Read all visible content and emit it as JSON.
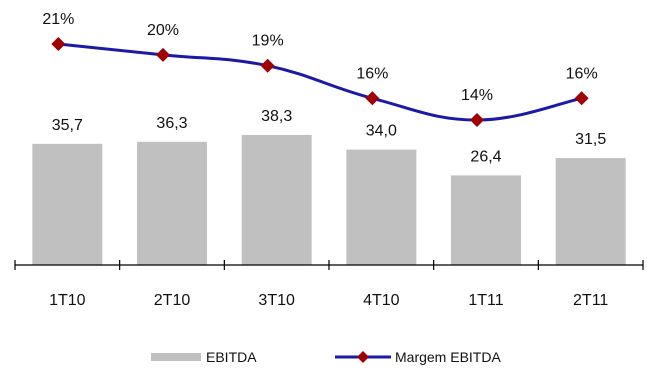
{
  "chart_data": {
    "type": "bar+line",
    "categories": [
      "1T10",
      "2T10",
      "3T10",
      "4T10",
      "1T11",
      "2T11"
    ],
    "series": [
      {
        "name": "EBITDA",
        "type": "bar",
        "values": [
          35.7,
          36.3,
          38.3,
          34.0,
          26.4,
          31.5
        ],
        "labels": [
          "35,7",
          "36,3",
          "38,3",
          "34,0",
          "26,4",
          "31,5"
        ],
        "color": "#c0c0c0"
      },
      {
        "name": "Margem EBITDA",
        "type": "line",
        "values": [
          21,
          20,
          19,
          16,
          14,
          16
        ],
        "labels": [
          "21%",
          "20%",
          "19%",
          "16%",
          "14%",
          "16%"
        ],
        "color": "#1a1aa6",
        "marker_color": "#a00000",
        "marker": "diamond",
        "line_style": "smoothed"
      }
    ],
    "legend": {
      "position": "bottom",
      "items": [
        "EBITDA",
        "Margem EBITDA"
      ]
    },
    "grid": false
  }
}
